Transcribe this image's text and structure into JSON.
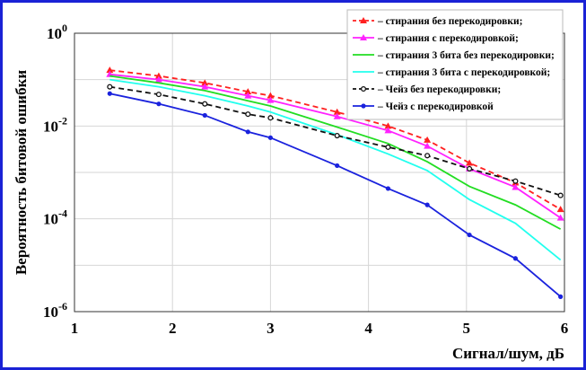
{
  "chart_data": {
    "type": "line",
    "ylabel": "Вероятность битовой ошибки",
    "xlabel": "Сигнал/шум, дБ",
    "xlim": [
      1,
      6
    ],
    "ylim_log10": [
      -6,
      0
    ],
    "yscale": "log",
    "grid": true,
    "legend_position": "top-right",
    "x_ticks": [
      "1",
      "2",
      "3",
      "4",
      "5",
      "6"
    ],
    "y_ticks": [
      {
        "base": "10",
        "exp": "0"
      },
      {
        "base": "10",
        "exp": "-2"
      },
      {
        "base": "10",
        "exp": "-4"
      },
      {
        "base": "10",
        "exp": "-6"
      }
    ],
    "x": [
      1.36,
      1.86,
      2.33,
      2.77,
      3.0,
      3.68,
      4.2,
      4.6,
      5.03,
      5.5,
      5.96
    ],
    "series": [
      {
        "name": "– стирания без перекодировки;",
        "color": "#ff2020",
        "dash": true,
        "marker": "triangle",
        "values": [
          0.16,
          0.12,
          0.085,
          0.055,
          0.045,
          0.02,
          0.01,
          0.005,
          0.0016,
          0.0006,
          0.00016
        ]
      },
      {
        "name": "– стирания с перекодировкой;",
        "color": "#ff22ff",
        "dash": false,
        "marker": "triangle",
        "values": [
          0.13,
          0.1,
          0.07,
          0.045,
          0.036,
          0.016,
          0.008,
          0.0037,
          0.0012,
          0.00048,
          0.000105
        ]
      },
      {
        "name": "– стирания 3 бита без перекодировки;",
        "color": "#22dd22",
        "dash": false,
        "marker": "none",
        "values": [
          0.12,
          0.085,
          0.058,
          0.035,
          0.027,
          0.0095,
          0.0042,
          0.0017,
          0.0005,
          0.0002,
          6e-05
        ]
      },
      {
        "name": "– стирания 3 бита с перекодировкой;",
        "color": "#22ffee",
        "dash": false,
        "marker": "none",
        "values": [
          0.1,
          0.07,
          0.045,
          0.027,
          0.02,
          0.0065,
          0.0025,
          0.0011,
          0.00026,
          8e-05,
          1.3e-05
        ]
      },
      {
        "name": "– Чейз без перекодировки;",
        "color": "#111111",
        "dash": true,
        "marker": "circle",
        "values": [
          0.07,
          0.048,
          0.03,
          0.018,
          0.015,
          0.0062,
          0.0035,
          0.0023,
          0.0012,
          0.00065,
          0.00032
        ]
      },
      {
        "name": "– Чейз с перекодировкой",
        "color": "#1a22dd",
        "dash": false,
        "marker": "dot",
        "values": [
          0.05,
          0.03,
          0.017,
          0.0075,
          0.0056,
          0.0014,
          0.00045,
          0.0002,
          4.5e-05,
          1.4e-05,
          2.1e-06
        ]
      }
    ]
  }
}
